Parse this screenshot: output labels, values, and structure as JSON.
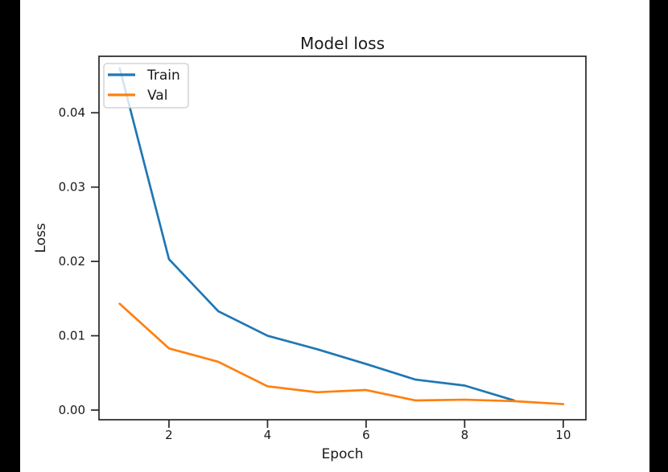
{
  "window": {
    "background": "#000000",
    "figure_background": "#ffffff",
    "text_color": "#1a1a1a",
    "spine_color": "#262626",
    "legend_border_color": "#cccccc"
  },
  "chart_data": {
    "type": "line",
    "title": "Model loss",
    "xlabel": "Epoch",
    "ylabel": "Loss",
    "grid": false,
    "legend_position": "upper left",
    "xlim": [
      0.58,
      10.46
    ],
    "ylim": [
      -0.0013,
      0.0476
    ],
    "xticks": [
      {
        "v": 2,
        "label": "2"
      },
      {
        "v": 4,
        "label": "4"
      },
      {
        "v": 6,
        "label": "6"
      },
      {
        "v": 8,
        "label": "8"
      },
      {
        "v": 10,
        "label": "10"
      }
    ],
    "yticks": [
      {
        "v": 0.0,
        "label": "0.00"
      },
      {
        "v": 0.01,
        "label": "0.01"
      },
      {
        "v": 0.02,
        "label": "0.02"
      },
      {
        "v": 0.03,
        "label": "0.03"
      },
      {
        "v": 0.04,
        "label": "0.04"
      }
    ],
    "series": [
      {
        "name": "Train",
        "color": "#1f77b4",
        "x": [
          1,
          2,
          3,
          4,
          5,
          6,
          7,
          8,
          9
        ],
        "values": [
          0.046,
          0.0203,
          0.0133,
          0.01,
          0.0082,
          0.0062,
          0.0041,
          0.0033,
          0.0013
        ]
      },
      {
        "name": "Val",
        "color": "#ff7f0e",
        "x": [
          1,
          2,
          3,
          4,
          5,
          6,
          7,
          8,
          9,
          10
        ],
        "values": [
          0.0143,
          0.0083,
          0.0065,
          0.0032,
          0.0024,
          0.0027,
          0.0013,
          0.0014,
          0.0012,
          0.0008
        ]
      }
    ]
  }
}
